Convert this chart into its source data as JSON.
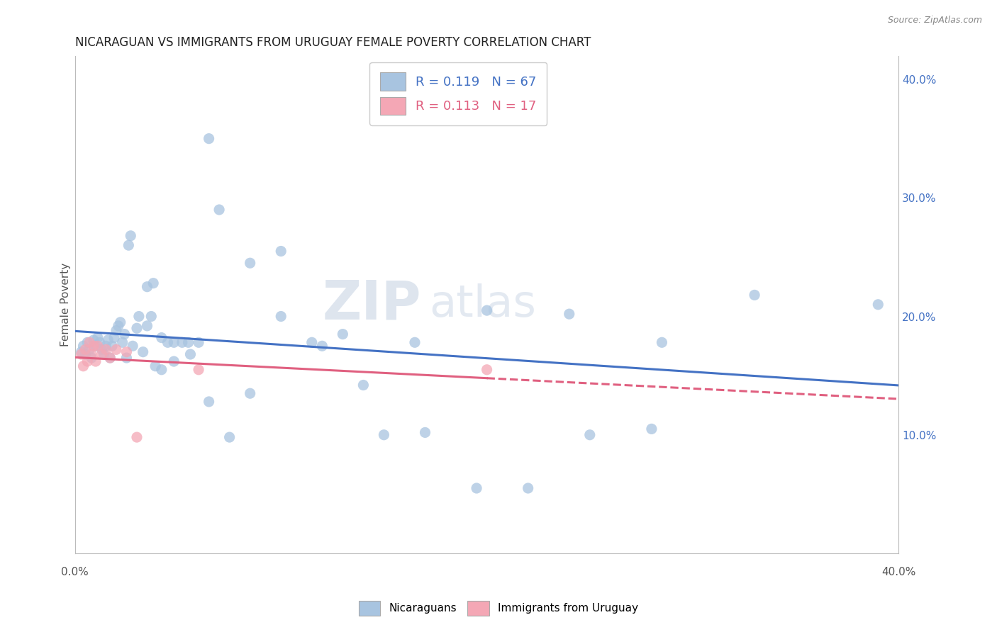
{
  "title": "NICARAGUAN VS IMMIGRANTS FROM URUGUAY FEMALE POVERTY CORRELATION CHART",
  "source": "Source: ZipAtlas.com",
  "ylabel": "Female Poverty",
  "right_yticks": [
    "40.0%",
    "30.0%",
    "20.0%",
    "10.0%"
  ],
  "right_ytick_vals": [
    0.4,
    0.3,
    0.2,
    0.1
  ],
  "blue_color": "#A8C4E0",
  "pink_color": "#F4A7B5",
  "blue_line_color": "#4472C4",
  "pink_line_color": "#E06080",
  "watermark_color": "#D0D8E8",
  "xlim": [
    0.0,
    0.4
  ],
  "ylim": [
    0.0,
    0.42
  ],
  "background_color": "#FFFFFF",
  "grid_color": "#CCCCCC",
  "blue_x": [
    0.003,
    0.004,
    0.005,
    0.006,
    0.007,
    0.008,
    0.009,
    0.01,
    0.011,
    0.012,
    0.013,
    0.014,
    0.015,
    0.016,
    0.017,
    0.018,
    0.019,
    0.02,
    0.021,
    0.022,
    0.023,
    0.024,
    0.025,
    0.026,
    0.027,
    0.028,
    0.03,
    0.031,
    0.033,
    0.035,
    0.037,
    0.039,
    0.042,
    0.045,
    0.048,
    0.052,
    0.056,
    0.06,
    0.065,
    0.07,
    0.035,
    0.038,
    0.042,
    0.048,
    0.055,
    0.065,
    0.075,
    0.085,
    0.1,
    0.115,
    0.13,
    0.15,
    0.17,
    0.195,
    0.22,
    0.25,
    0.28,
    0.085,
    0.1,
    0.12,
    0.14,
    0.165,
    0.2,
    0.24,
    0.285,
    0.33,
    0.39
  ],
  "blue_y": [
    0.17,
    0.175,
    0.168,
    0.178,
    0.172,
    0.165,
    0.18,
    0.175,
    0.182,
    0.178,
    0.172,
    0.168,
    0.175,
    0.18,
    0.165,
    0.175,
    0.182,
    0.188,
    0.192,
    0.195,
    0.178,
    0.185,
    0.165,
    0.26,
    0.268,
    0.175,
    0.19,
    0.2,
    0.17,
    0.192,
    0.2,
    0.158,
    0.155,
    0.178,
    0.162,
    0.178,
    0.168,
    0.178,
    0.35,
    0.29,
    0.225,
    0.228,
    0.182,
    0.178,
    0.178,
    0.128,
    0.098,
    0.135,
    0.2,
    0.178,
    0.185,
    0.1,
    0.102,
    0.055,
    0.055,
    0.1,
    0.105,
    0.245,
    0.255,
    0.175,
    0.142,
    0.178,
    0.205,
    0.202,
    0.178,
    0.218,
    0.21
  ],
  "pink_x": [
    0.003,
    0.004,
    0.005,
    0.006,
    0.007,
    0.008,
    0.009,
    0.01,
    0.011,
    0.013,
    0.015,
    0.017,
    0.02,
    0.025,
    0.03,
    0.06,
    0.2
  ],
  "pink_y": [
    0.168,
    0.158,
    0.172,
    0.162,
    0.178,
    0.168,
    0.175,
    0.162,
    0.175,
    0.168,
    0.172,
    0.165,
    0.172,
    0.17,
    0.098,
    0.155,
    0.155
  ]
}
